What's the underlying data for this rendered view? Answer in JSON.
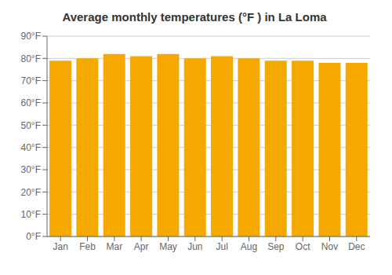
{
  "chart_data": {
    "type": "bar",
    "title": "Average monthly temperatures (°F ) in La Loma",
    "categories": [
      "Jan",
      "Feb",
      "Mar",
      "Apr",
      "May",
      "Jun",
      "Jul",
      "Aug",
      "Sep",
      "Oct",
      "Nov",
      "Dec"
    ],
    "values": [
      79,
      80,
      82,
      81,
      82,
      80,
      81,
      80,
      79,
      79,
      78,
      78
    ],
    "color": "#F5A800",
    "ylim": [
      0,
      90
    ],
    "yticks": [
      {
        "value": 0,
        "label": "0°F"
      },
      {
        "value": 10,
        "label": "10°F"
      },
      {
        "value": 20,
        "label": "20°F"
      },
      {
        "value": 30,
        "label": "30°F"
      },
      {
        "value": 40,
        "label": "40°F"
      },
      {
        "value": 50,
        "label": "50°F"
      },
      {
        "value": 60,
        "label": "60°F"
      },
      {
        "value": 70,
        "label": "70°F"
      },
      {
        "value": 80,
        "label": "80°F"
      },
      {
        "value": 90,
        "label": "90°F"
      }
    ],
    "grid": true
  }
}
